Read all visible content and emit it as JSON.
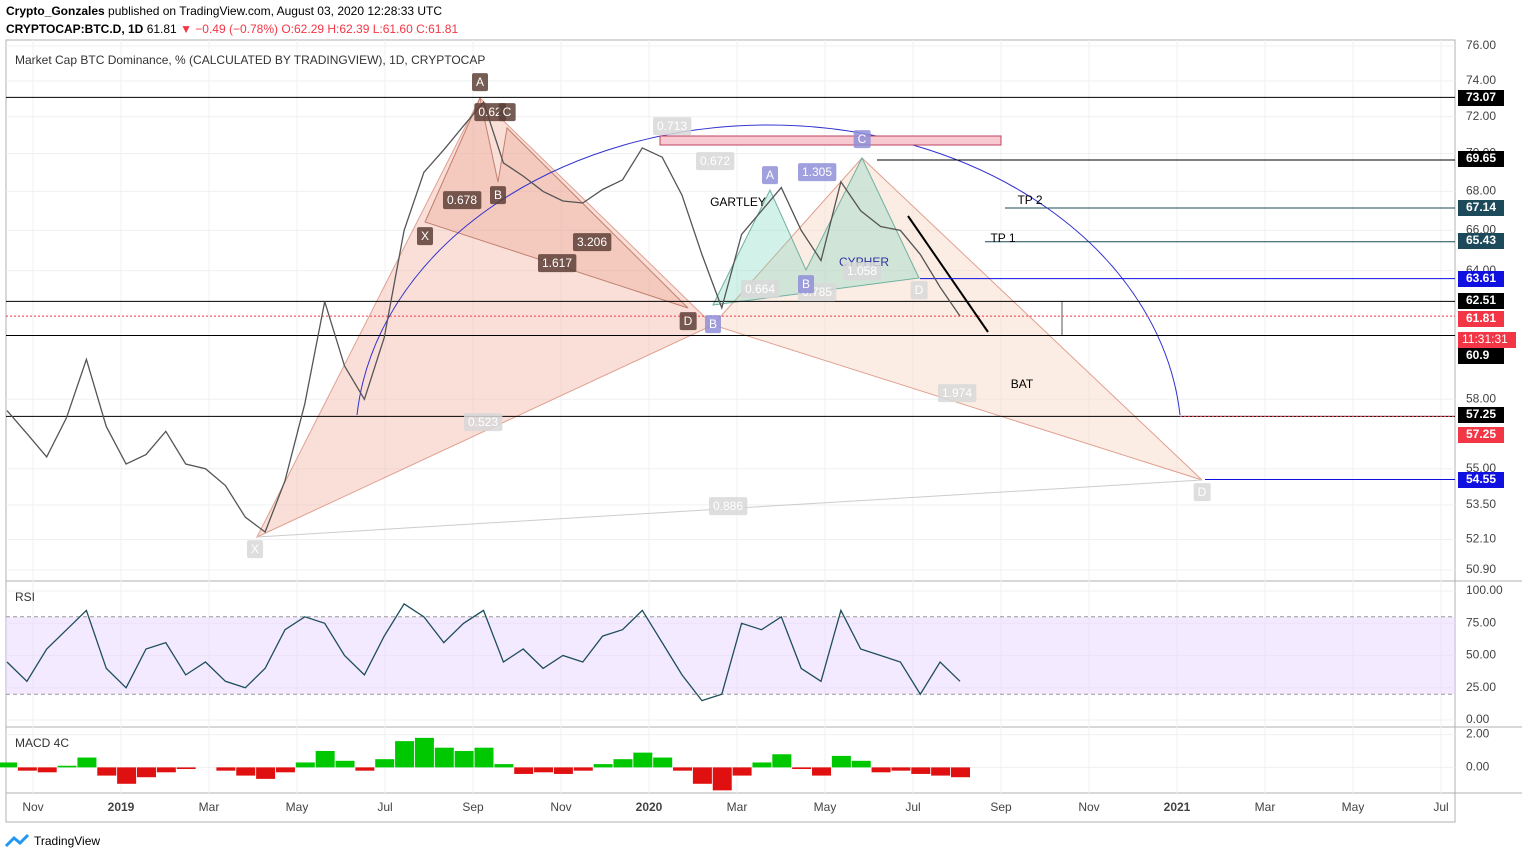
{
  "header": {
    "author": "Crypto_Gonzales",
    "published": "published on TradingView.com, August 03, 2020 12:28:33 UTC",
    "symbol": "CRYPTOCAP:BTC.D, 1D",
    "last": "61.81",
    "change": "▼ −0.49 (−0.78%)",
    "ohlc": "O:62.29 H:62.39 L:61.60 C:61.81"
  },
  "main": {
    "title": "Market Cap BTC Dominance, % (CALCULATED BY TRADINGVIEW), 1D, CRYPTOCAP",
    "log_scale": true,
    "ylim": [
      50.9,
      76
    ],
    "yticks": [
      {
        "value": 76,
        "label": "76.00"
      },
      {
        "value": 74,
        "label": "74.00"
      },
      {
        "value": 72,
        "label": "72.00"
      },
      {
        "value": 70,
        "label": "70.00"
      },
      {
        "value": 68,
        "label": "68.00"
      },
      {
        "value": 66,
        "label": "66.00"
      },
      {
        "value": 64,
        "label": "64.00"
      },
      {
        "value": 58,
        "label": "58.00"
      },
      {
        "value": 55,
        "label": "55.00"
      },
      {
        "value": 53.5,
        "label": "53.50"
      },
      {
        "value": 52.1,
        "label": "52.10"
      },
      {
        "value": 50.9,
        "label": "50.90"
      }
    ],
    "price_color": "#555555",
    "values": [
      57.5,
      56.5,
      55.5,
      57.2,
      59.8,
      56.8,
      55.2,
      55.6,
      56.6,
      55.2,
      55.0,
      54.3,
      53.0,
      52.4,
      54.5,
      57.8,
      62.5,
      59.5,
      58.0,
      60.8,
      66.0,
      69.0,
      70.2,
      71.5,
      72.8,
      69.5,
      68.8,
      68.0,
      67.5,
      67.4,
      68.1,
      68.6,
      70.3,
      69.8,
      67.8,
      64.8,
      62.2,
      65.8,
      67.0,
      68.2,
      66.0,
      64.5,
      68.5,
      67.0,
      66.2,
      66.0,
      64.8,
      63.2,
      61.81
    ],
    "levels": [
      {
        "value": 73.07,
        "color": "#000000"
      },
      {
        "value": 69.65,
        "color": "#000000"
      },
      {
        "value": 67.14,
        "color": "#1c4a5a"
      },
      {
        "value": 65.43,
        "color": "#1c4a5a"
      },
      {
        "value": 63.61,
        "color": "#1010e0"
      },
      {
        "value": 62.51,
        "color": "#000000"
      },
      {
        "value": 61.81,
        "color": "#f23645"
      },
      {
        "value": 60.9,
        "color": "#000000"
      },
      {
        "value": 57.25,
        "color": "#000000"
      },
      {
        "value": 57.25,
        "color": "#f23645"
      },
      {
        "value": 54.55,
        "color": "#1010e0"
      }
    ],
    "countdown": "11:31:31",
    "pattern_labels": [
      "A",
      "0.62",
      "C",
      "B",
      "X",
      "0.678",
      "3.206",
      "1.617",
      "D",
      "B",
      "0.713",
      "0.672",
      "A",
      "1.305",
      "C",
      "GARTLEY",
      "CYPHER",
      "1.058",
      "0.664",
      "0.785",
      "B",
      "D",
      "TP 2",
      "TP 1",
      "BAT",
      "1.974",
      "0.523",
      "0.886",
      "X",
      "D"
    ]
  },
  "rsi": {
    "title": "RSI",
    "ylim": [
      0,
      100
    ],
    "yticks": [
      {
        "value": 100,
        "label": "100.00"
      },
      {
        "value": 75,
        "label": "75.00"
      },
      {
        "value": 50,
        "label": "50.00"
      },
      {
        "value": 25,
        "label": "25.00"
      },
      {
        "value": 0,
        "label": "0.00"
      }
    ],
    "band": [
      20,
      80
    ],
    "color": "#1e4d5c",
    "values": [
      45,
      30,
      55,
      70,
      85,
      40,
      25,
      55,
      60,
      35,
      45,
      30,
      25,
      40,
      70,
      80,
      75,
      50,
      35,
      65,
      90,
      80,
      60,
      75,
      85,
      45,
      55,
      40,
      50,
      45,
      65,
      70,
      85,
      60,
      35,
      15,
      20,
      75,
      70,
      80,
      40,
      30,
      85,
      55,
      50,
      45,
      20,
      45,
      30
    ]
  },
  "macd": {
    "title": "MACD 4C",
    "ylim": [
      -1.5,
      2.4
    ],
    "yticks": [
      {
        "value": 2,
        "label": "2.00"
      },
      {
        "value": 0,
        "label": "0.00"
      }
    ],
    "colors": [
      "#00c800",
      "#e01010"
    ],
    "values": [
      0.3,
      -0.2,
      -0.3,
      0.1,
      0.6,
      -0.5,
      -1.0,
      -0.6,
      -0.3,
      -0.1,
      0.0,
      -0.2,
      -0.5,
      -0.7,
      -0.3,
      0.3,
      1.0,
      0.4,
      -0.2,
      0.5,
      1.6,
      1.8,
      1.2,
      1.0,
      1.2,
      0.2,
      -0.4,
      -0.3,
      -0.4,
      -0.2,
      0.2,
      0.5,
      0.9,
      0.6,
      -0.2,
      -1.0,
      -1.4,
      -0.5,
      0.3,
      0.8,
      -0.1,
      -0.5,
      0.7,
      0.4,
      -0.3,
      -0.2,
      -0.4,
      -0.5,
      -0.6
    ]
  },
  "time_axis": [
    "Nov",
    "2019",
    "Mar",
    "May",
    "Jul",
    "Sep",
    "Nov",
    "2020",
    "Mar",
    "May",
    "Jul",
    "Sep",
    "Nov",
    "2021",
    "Mar",
    "May",
    "Jul"
  ],
  "footer": {
    "brand": "TradingView"
  }
}
